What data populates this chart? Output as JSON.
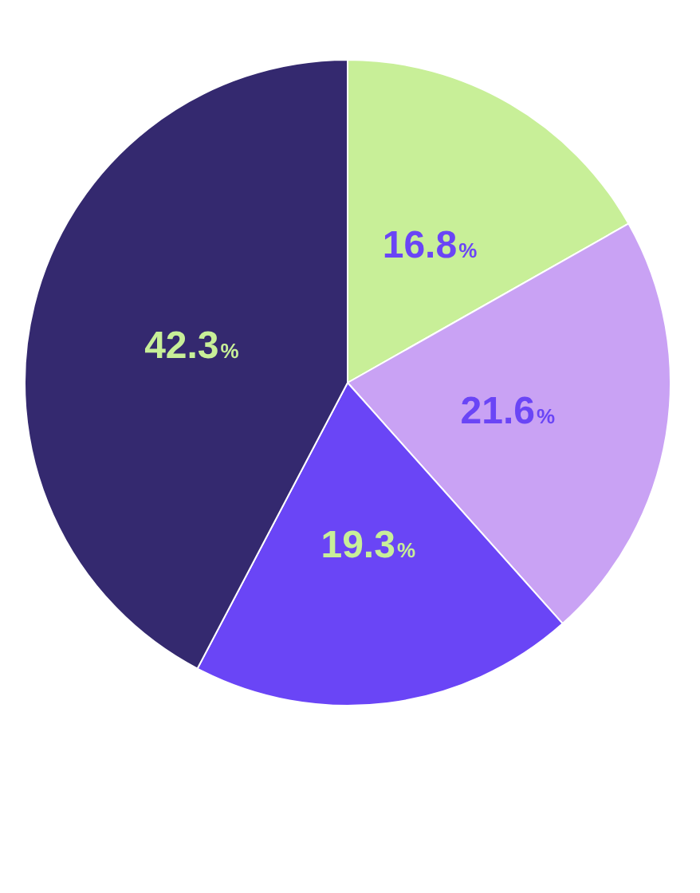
{
  "chart_data": {
    "type": "pie",
    "categories": [
      null,
      null,
      null,
      null
    ],
    "values": [
      16.8,
      21.6,
      19.3,
      42.3
    ],
    "colors": [
      "#c8ef98",
      "#c9a2f4",
      "#6a45f6",
      "#34296f"
    ],
    "value_labels": [
      "16.8%",
      "21.6%",
      "19.3%",
      "42.3%"
    ],
    "legend": false
  }
}
